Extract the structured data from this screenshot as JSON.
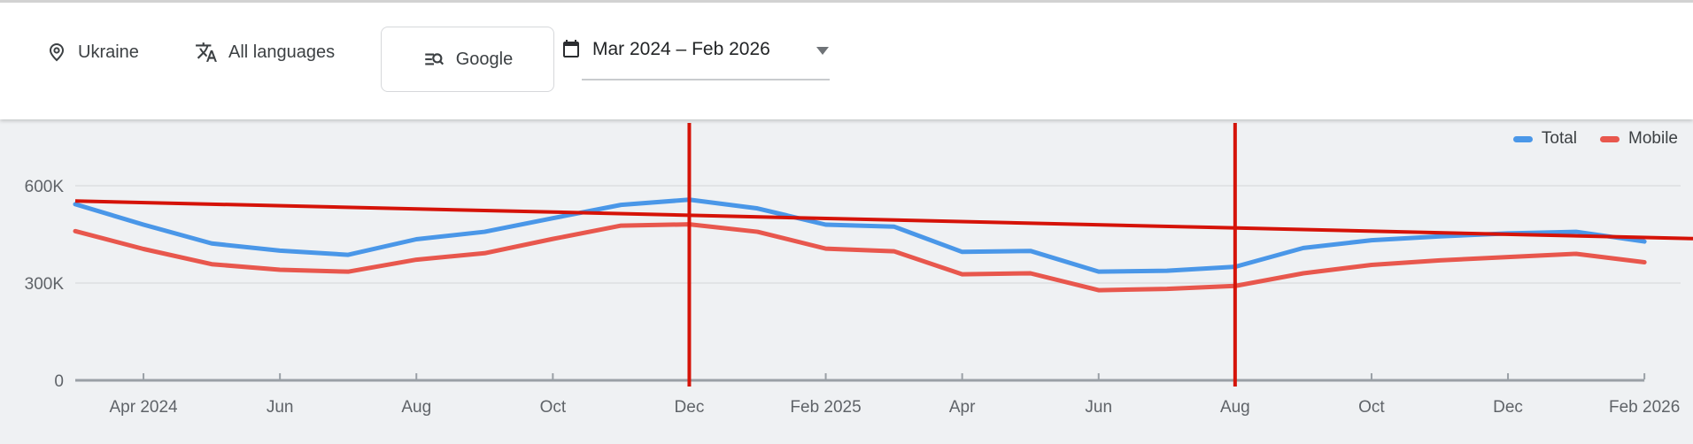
{
  "toolbar": {
    "location": {
      "label": "Ukraine"
    },
    "languages": {
      "label": "All languages"
    },
    "engine": {
      "label": "Google"
    },
    "date_range": {
      "label": "Mar 2024 – Feb 2026"
    }
  },
  "legend": [
    {
      "name": "Total",
      "color": "#4a97e8"
    },
    {
      "name": "Mobile",
      "color": "#e8574d"
    }
  ],
  "chart_data": {
    "type": "line",
    "x": [
      "Mar 2024",
      "Apr 2024",
      "May 2024",
      "Jun 2024",
      "Jul 2024",
      "Aug 2024",
      "Sep 2024",
      "Oct 2024",
      "Nov 2024",
      "Dec 2024",
      "Jan 2025",
      "Feb 2025",
      "Mar 2025",
      "Apr 2025",
      "May 2025",
      "Jun 2025",
      "Jul 2025",
      "Aug 2025",
      "Sep 2025",
      "Oct 2025",
      "Nov 2025",
      "Dec 2025",
      "Jan 2026",
      "Feb 2026"
    ],
    "series": [
      {
        "name": "Total",
        "color": "#4a97e8",
        "values": [
          543000,
          480000,
          422000,
          400000,
          387000,
          435000,
          458000,
          500000,
          541000,
          557000,
          530000,
          480000,
          474000,
          396000,
          399000,
          335000,
          338000,
          350000,
          408000,
          432000,
          444000,
          453000,
          458000,
          428000
        ]
      },
      {
        "name": "Mobile",
        "color": "#e8574d",
        "values": [
          460000,
          405000,
          358000,
          341000,
          335000,
          372000,
          392000,
          436000,
          477000,
          481000,
          458000,
          406000,
          398000,
          327000,
          330000,
          278000,
          282000,
          291000,
          330000,
          356000,
          370000,
          380000,
          390000,
          364000
        ]
      }
    ],
    "ylim": [
      0,
      800000
    ],
    "yticks": [
      {
        "label": "0",
        "value": 0
      },
      {
        "label": "300K",
        "value": 300000
      },
      {
        "label": "600K",
        "value": 600000
      }
    ],
    "xtick_labels": [
      "Apr 2024",
      "Jun",
      "Aug",
      "Oct",
      "Dec",
      "Feb 2025",
      "Apr",
      "Jun",
      "Aug",
      "Oct",
      "Dec",
      "Feb 2026"
    ],
    "xtick_month_indices": [
      1,
      3,
      5,
      7,
      9,
      11,
      13,
      15,
      17,
      19,
      21,
      23
    ],
    "grid": "horizontal",
    "legend_position": "top-right",
    "annotations": {
      "trendline": {
        "color": "#d51308",
        "start_value": 553000,
        "end_value": 437000
      },
      "vertical_lines": [
        {
          "month": "Dec 2024",
          "month_index": 9,
          "color": "#d51308"
        },
        {
          "month": "Aug 2025",
          "month_index": 17,
          "color": "#d51308"
        }
      ]
    }
  }
}
